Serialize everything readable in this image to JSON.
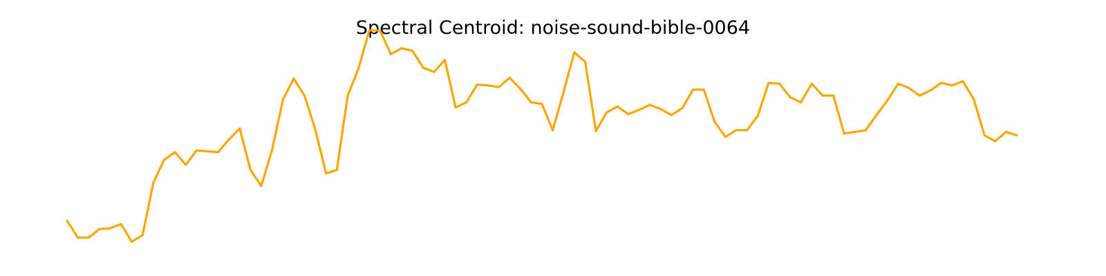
{
  "chart_data": {
    "type": "line",
    "title": "Spectral Centroid: noise-sound-bible-0064",
    "xlabel": "",
    "ylabel": "",
    "axes_visible": false,
    "grid": false,
    "color": "#ffa500",
    "series": [
      {
        "values": [
          0.16,
          0.06,
          0.06,
          0.11,
          0.115,
          0.14,
          0.035,
          0.075,
          0.385,
          0.52,
          0.565,
          0.49,
          0.575,
          0.57,
          0.565,
          0.64,
          0.705,
          0.46,
          0.365,
          0.58,
          0.875,
          1.0,
          0.9,
          0.7,
          0.44,
          0.46,
          0.9,
          1.06,
          1.285,
          1.285,
          1.145,
          1.18,
          1.165,
          1.065,
          1.04,
          1.11,
          0.83,
          0.86,
          0.965,
          0.96,
          0.95,
          1.005,
          0.94,
          0.86,
          0.85,
          0.695,
          0.92,
          1.155,
          1.1,
          0.69,
          0.8,
          0.835,
          0.79,
          0.815,
          0.845,
          0.82,
          0.785,
          0.825,
          0.935,
          0.935,
          0.745,
          0.655,
          0.695,
          0.695,
          0.78,
          0.975,
          0.97,
          0.89,
          0.86,
          0.97,
          0.9,
          0.9,
          0.675,
          0.685,
          0.695,
          0.785,
          0.87,
          0.97,
          0.945,
          0.9,
          0.93,
          0.975,
          0.96,
          0.985,
          0.88,
          0.665,
          0.63,
          0.685,
          0.665
        ]
      }
    ],
    "ylim": [
      0,
      1.4
    ]
  }
}
